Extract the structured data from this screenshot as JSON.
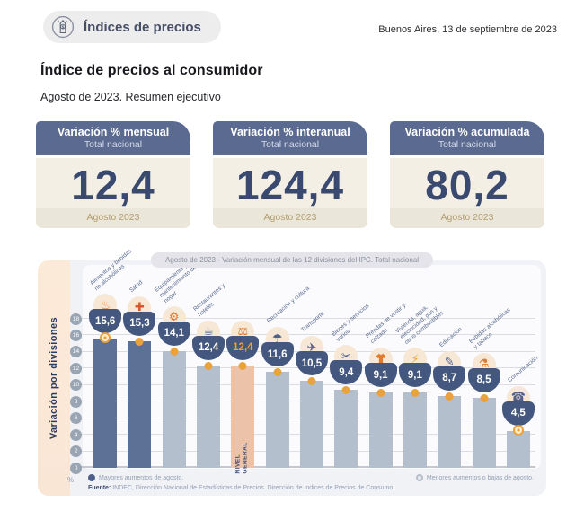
{
  "header": {
    "badge_label": "Índices de precios",
    "dateline": "Buenos Aires, 13 de septiembre de 2023"
  },
  "title": "Índice de precios al consumidor",
  "subtitle": "Agosto de 2023. Resumen ejecutivo",
  "cards": [
    {
      "title": "Variación % mensual",
      "subtitle": "Total nacional",
      "value": "12,4",
      "period": "Agosto 2023"
    },
    {
      "title": "Variación % interanual",
      "subtitle": "Total nacional",
      "value": "124,4",
      "period": "Agosto 2023"
    },
    {
      "title": "Variación % acumulada",
      "subtitle": "Total nacional",
      "value": "80,2",
      "period": "Agosto 2023"
    }
  ],
  "chart_data": {
    "type": "bar",
    "title": "Agosto de 2023 - Variación mensual de las 12 divisiones del IPC. Total nacional",
    "ylabel": "Variación por divisiones",
    "unit": "%",
    "ylim": [
      0,
      18
    ],
    "ytick_step": 2,
    "grid": true,
    "categories": [
      "Alimentos y bebidas no alcohólicas",
      "Salud",
      "Equipamiento y mantenimiento del hogar",
      "Restaurantes y hoteles",
      "NIVEL GENERAL",
      "Recreación y cultura",
      "Transporte",
      "Bienes y servicios varios",
      "Prendas de vestir y calzado",
      "Vivienda, agua, electricidad, gas y otros combustibles",
      "Educación",
      "Bebidas alcohólicas y tabaco",
      "Comunicación"
    ],
    "values": [
      15.6,
      15.3,
      14.1,
      12.4,
      12.4,
      11.6,
      10.5,
      9.4,
      9.1,
      9.1,
      8.7,
      8.5,
      4.5
    ],
    "bars": [
      {
        "category": "Alimentos y bebidas no alcohólicas",
        "value": 15.6,
        "display": "15,6",
        "style": "dark",
        "marker": "ring",
        "icon": "food-icon",
        "glyph": "♨",
        "glyph_color": "#e07b30"
      },
      {
        "category": "Salud",
        "value": 15.3,
        "display": "15,3",
        "style": "dark",
        "marker": "dot",
        "icon": "health-icon",
        "glyph": "✚",
        "glyph_color": "#d9532c"
      },
      {
        "category": "Equipamiento y mantenimiento del hogar",
        "value": 14.1,
        "display": "14,1",
        "style": "light",
        "marker": "dot",
        "icon": "home-equipment-icon",
        "glyph": "⚙",
        "glyph_color": "#e07b30"
      },
      {
        "category": "Restaurantes y hoteles",
        "value": 12.4,
        "display": "12,4",
        "style": "light",
        "marker": "dot",
        "icon": "restaurant-icon",
        "glyph": "☕",
        "glyph_color": "#4e5f88"
      },
      {
        "category": "NIVEL GENERAL",
        "value": 12.4,
        "display": "12,4",
        "style": "general",
        "marker": "dot",
        "icon": "shopping-basket-icon",
        "glyph": "⚖",
        "glyph_color": "#e07b30",
        "bar_label": "NIVEL GENERAL"
      },
      {
        "category": "Recreación y cultura",
        "value": 11.6,
        "display": "11,6",
        "style": "light",
        "marker": "dot",
        "icon": "recreation-icon",
        "glyph": "☂",
        "glyph_color": "#4e5f88"
      },
      {
        "category": "Transporte",
        "value": 10.5,
        "display": "10,5",
        "style": "light",
        "marker": "dot",
        "icon": "transport-icon",
        "glyph": "✈",
        "glyph_color": "#4e5f88"
      },
      {
        "category": "Bienes y servicios varios",
        "value": 9.4,
        "display": "9,4",
        "style": "light",
        "marker": "dot",
        "icon": "goods-services-icon",
        "glyph": "✂",
        "glyph_color": "#4e5f88"
      },
      {
        "category": "Prendas de vestir y calzado",
        "value": 9.1,
        "display": "9,1",
        "style": "light",
        "marker": "dot",
        "icon": "clothing-icon",
        "glyph": "",
        "glyph_color": "#e07b30"
      },
      {
        "category": "Vivienda, agua, electricidad, gas y otros combustibles",
        "value": 9.1,
        "display": "9,1",
        "style": "light",
        "marker": "dot",
        "icon": "housing-utilities-icon",
        "glyph": "⚡",
        "glyph_color": "#e8a33c"
      },
      {
        "category": "Educación",
        "value": 8.7,
        "display": "8,7",
        "style": "light",
        "marker": "dot",
        "icon": "education-icon",
        "glyph": "✎",
        "glyph_color": "#4e5f88"
      },
      {
        "category": "Bebidas alcohólicas y tabaco",
        "value": 8.5,
        "display": "8,5",
        "style": "light",
        "marker": "dot",
        "icon": "alcohol-tobacco-icon",
        "glyph": "⚗",
        "glyph_color": "#e07b30"
      },
      {
        "category": "Comunicación",
        "value": 4.5,
        "display": "4,5",
        "style": "light",
        "marker": "ring",
        "icon": "communication-icon",
        "glyph": "☎",
        "glyph_color": "#4e5f88"
      }
    ],
    "legend": [
      {
        "label": "Mayores aumentos de agosto.",
        "style": "filled"
      },
      {
        "label": "Menores aumentos o bajas de agosto.",
        "style": "ring"
      }
    ],
    "source_prefix": "Fuente:",
    "source_text": "INDEC, Dirección Nacional de Estadísticas de Precios. Dirección de Índices de Precios de Consumo.",
    "legend_position": "bottom"
  },
  "colors": {
    "navy": "#44577f",
    "bar_dark": "#5d7096",
    "bar_light": "#b3bfcc",
    "bar_general": "#ecc3a8",
    "accent_orange": "#e9a23c",
    "card_header": "#5a6a90",
    "card_body": "#f4efe5",
    "period_text": "#b29e6d"
  }
}
